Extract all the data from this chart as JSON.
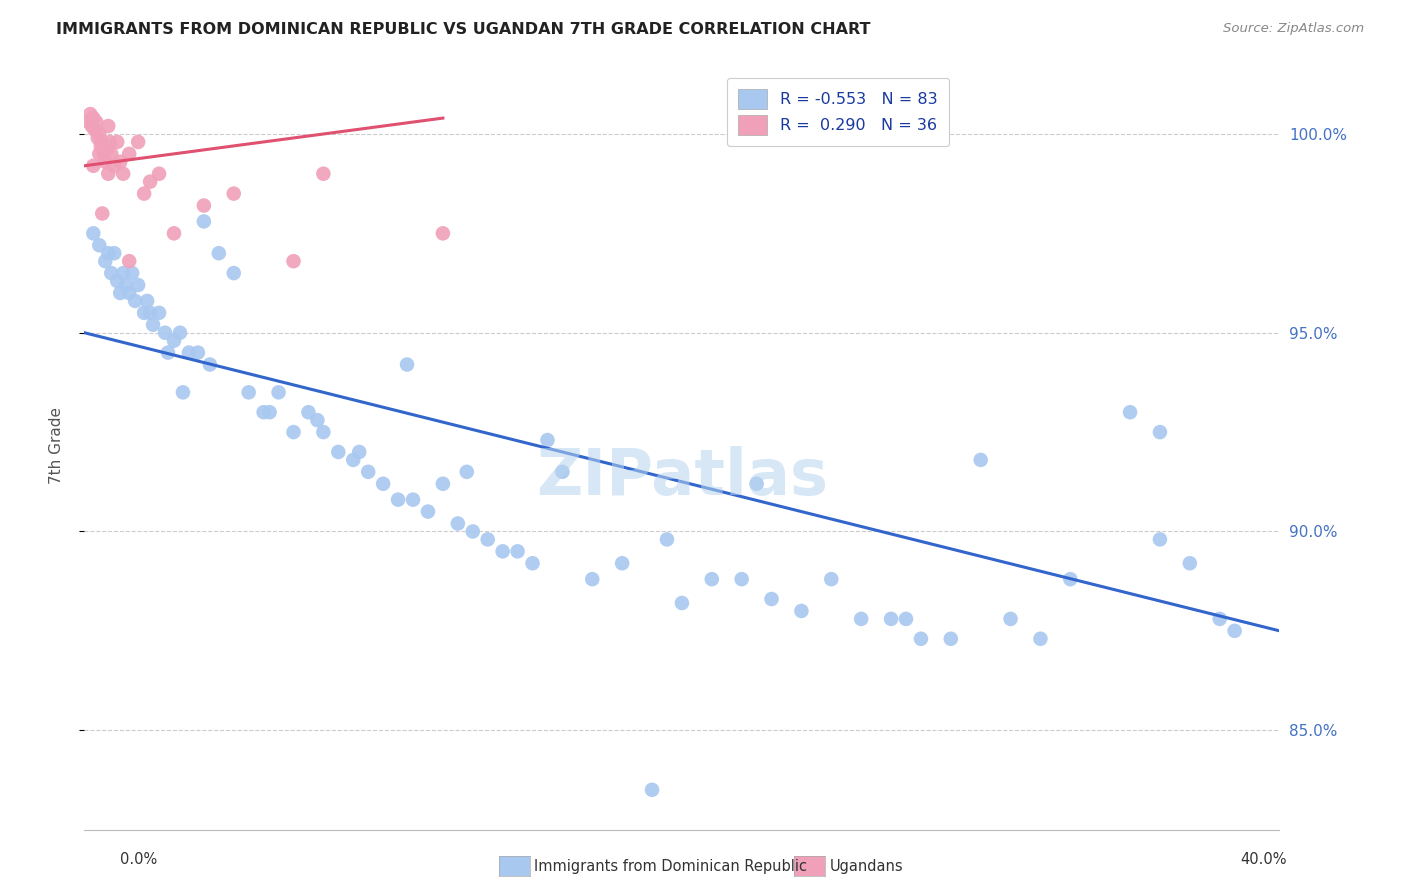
{
  "title": "IMMIGRANTS FROM DOMINICAN REPUBLIC VS UGANDAN 7TH GRADE CORRELATION CHART",
  "source": "Source: ZipAtlas.com",
  "ylabel": "7th Grade",
  "xmin": 0.0,
  "xmax": 40.0,
  "ymin": 82.5,
  "ymax": 101.8,
  "blue_color": "#A8C8F0",
  "pink_color": "#F0A0B8",
  "blue_line_color": "#3366CC",
  "pink_line_color": "#E05070",
  "watermark": "ZIPatlas",
  "blue_points_x": [
    0.3,
    0.5,
    0.7,
    0.8,
    0.9,
    1.0,
    1.1,
    1.2,
    1.3,
    1.4,
    1.5,
    1.6,
    1.7,
    1.8,
    2.0,
    2.1,
    2.2,
    2.3,
    2.5,
    2.7,
    3.0,
    3.2,
    3.5,
    3.8,
    4.0,
    4.5,
    5.0,
    5.5,
    6.0,
    6.5,
    7.0,
    7.5,
    8.0,
    8.5,
    9.0,
    9.5,
    10.0,
    10.5,
    11.0,
    11.5,
    12.0,
    12.5,
    13.0,
    13.5,
    14.0,
    14.5,
    15.0,
    16.0,
    17.0,
    18.0,
    19.0,
    20.0,
    21.0,
    22.0,
    23.0,
    24.0,
    25.0,
    26.0,
    27.0,
    28.0,
    29.0,
    30.0,
    31.0,
    32.0,
    33.0,
    35.0,
    36.0,
    37.0,
    38.0,
    2.8,
    3.3,
    4.2,
    6.2,
    7.8,
    9.2,
    10.8,
    12.8,
    15.5,
    19.5,
    22.5,
    27.5,
    36.0,
    38.5
  ],
  "blue_points_y": [
    97.5,
    97.2,
    96.8,
    97.0,
    96.5,
    97.0,
    96.3,
    96.0,
    96.5,
    96.2,
    96.0,
    96.5,
    95.8,
    96.2,
    95.5,
    95.8,
    95.5,
    95.2,
    95.5,
    95.0,
    94.8,
    95.0,
    94.5,
    94.5,
    97.8,
    97.0,
    96.5,
    93.5,
    93.0,
    93.5,
    92.5,
    93.0,
    92.5,
    92.0,
    91.8,
    91.5,
    91.2,
    90.8,
    90.8,
    90.5,
    91.2,
    90.2,
    90.0,
    89.8,
    89.5,
    89.5,
    89.2,
    91.5,
    88.8,
    89.2,
    83.5,
    88.2,
    88.8,
    88.8,
    88.3,
    88.0,
    88.8,
    87.8,
    87.8,
    87.3,
    87.3,
    91.8,
    87.8,
    87.3,
    88.8,
    93.0,
    89.8,
    89.2,
    87.8,
    94.5,
    93.5,
    94.2,
    93.0,
    92.8,
    92.0,
    94.2,
    91.5,
    92.3,
    89.8,
    91.2,
    87.8,
    92.5,
    87.5
  ],
  "pink_points_x": [
    0.15,
    0.2,
    0.25,
    0.3,
    0.35,
    0.4,
    0.45,
    0.5,
    0.55,
    0.6,
    0.65,
    0.7,
    0.75,
    0.8,
    0.85,
    0.9,
    1.0,
    1.1,
    1.2,
    1.3,
    1.5,
    1.8,
    2.0,
    2.5,
    3.0,
    4.0,
    5.0,
    7.0,
    8.0,
    12.0,
    0.3,
    0.5,
    0.6,
    0.8,
    1.5,
    2.2
  ],
  "pink_points_y": [
    100.3,
    100.5,
    100.2,
    100.4,
    100.1,
    100.3,
    99.9,
    100.0,
    99.7,
    99.8,
    99.5,
    99.3,
    99.6,
    100.2,
    99.8,
    99.5,
    99.2,
    99.8,
    99.3,
    99.0,
    99.5,
    99.8,
    98.5,
    99.0,
    97.5,
    98.2,
    98.5,
    96.8,
    99.0,
    97.5,
    99.2,
    99.5,
    98.0,
    99.0,
    96.8,
    98.8
  ],
  "blue_trend_x": [
    0.0,
    40.0
  ],
  "blue_trend_y": [
    95.0,
    87.5
  ],
  "pink_trend_x": [
    0.0,
    12.0
  ],
  "pink_trend_y": [
    99.2,
    100.4
  ]
}
